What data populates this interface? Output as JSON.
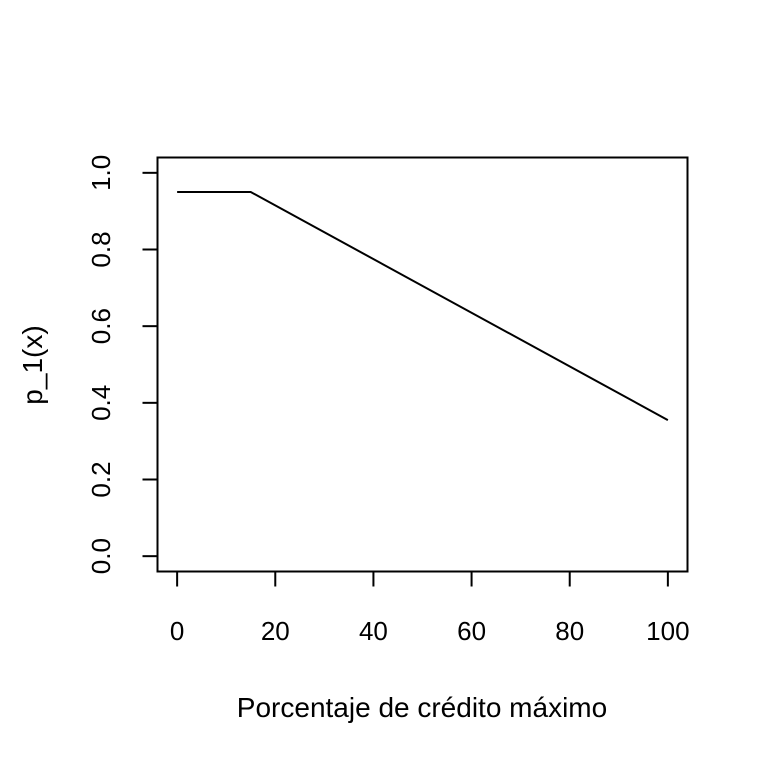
{
  "chart_data": {
    "type": "line",
    "title": "",
    "xlabel": "Porcentaje de crédito máximo",
    "ylabel": "p_1(x)",
    "xlim": [
      -4,
      104
    ],
    "ylim": [
      -0.04,
      1.04
    ],
    "grid": false,
    "legend": "none",
    "x_ticks": [
      0,
      20,
      40,
      60,
      80,
      100
    ],
    "x_tick_labels": [
      "0",
      "20",
      "40",
      "60",
      "80",
      "100"
    ],
    "y_ticks": [
      0,
      0.2,
      0.4,
      0.6,
      0.8,
      1
    ],
    "y_tick_labels": [
      "0.0",
      "0.2",
      "0.4",
      "0.6",
      "0.8",
      "1.0"
    ],
    "series": [
      {
        "x": [
          0,
          15,
          100
        ],
        "y": [
          0.95,
          0.95,
          0.355
        ]
      }
    ],
    "colors": {
      "line": "#000000",
      "frame": "#000000"
    }
  }
}
